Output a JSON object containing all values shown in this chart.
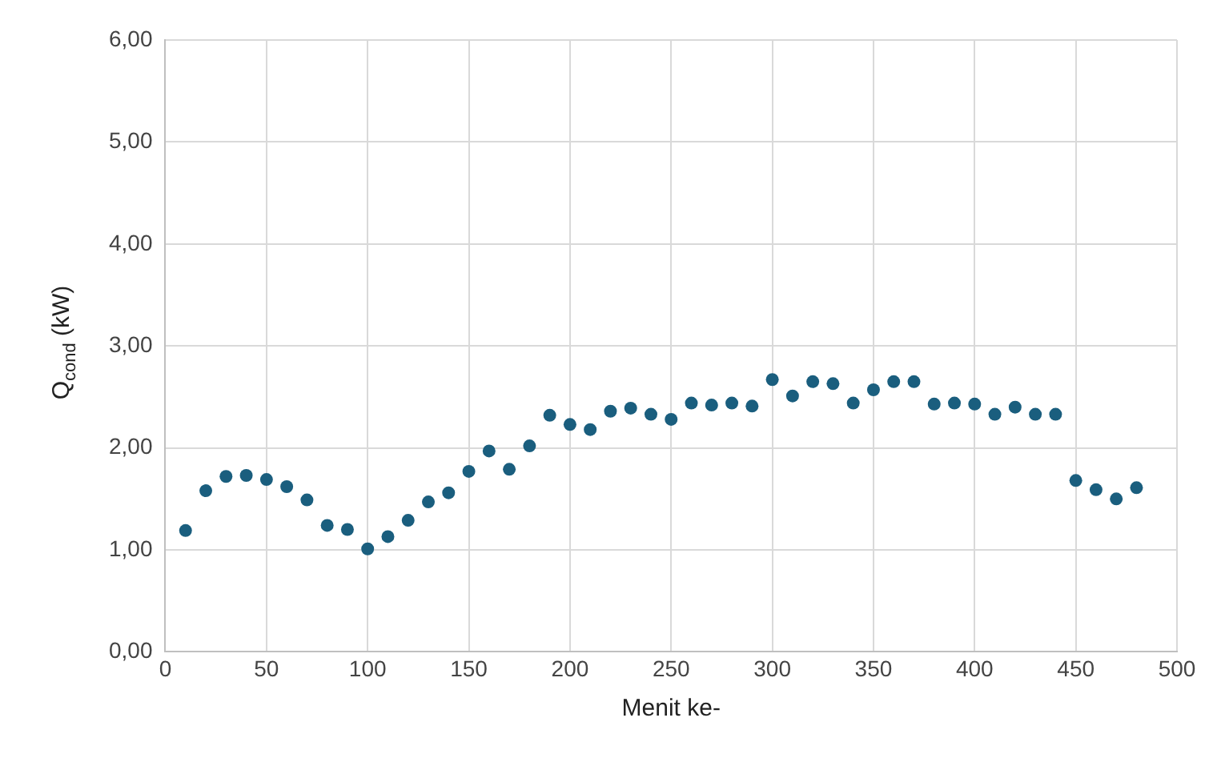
{
  "chart_data": {
    "type": "scatter",
    "xlabel": "Menit ke-",
    "ylabel": "Q$_{cond}$ (kW)",
    "x": [
      10,
      20,
      30,
      40,
      50,
      60,
      70,
      80,
      90,
      100,
      110,
      120,
      130,
      140,
      150,
      160,
      170,
      180,
      190,
      200,
      210,
      220,
      230,
      240,
      250,
      260,
      270,
      280,
      290,
      300,
      310,
      320,
      330,
      340,
      350,
      360,
      370,
      380,
      390,
      400,
      410,
      420,
      430,
      440,
      450,
      460,
      470,
      480
    ],
    "series": [
      {
        "color": "#1a5e7e",
        "values": [
          1.19,
          1.58,
          1.72,
          1.73,
          1.69,
          1.62,
          1.49,
          1.24,
          1.2,
          1.01,
          1.13,
          1.29,
          1.47,
          1.56,
          1.77,
          1.97,
          1.79,
          2.02,
          2.32,
          2.23,
          2.18,
          2.36,
          2.39,
          2.33,
          2.28,
          2.44,
          2.42,
          2.44,
          2.41,
          2.67,
          2.51,
          2.65,
          2.63,
          2.44,
          2.57,
          2.65,
          2.65,
          2.43,
          2.44,
          2.43,
          2.33,
          2.4,
          2.33,
          2.33,
          1.68,
          1.59,
          1.5,
          1.61
        ]
      }
    ],
    "marker": "circle",
    "grid": true,
    "legend": false,
    "xlim": [
      0,
      500
    ],
    "xticks": [
      0,
      50,
      100,
      150,
      200,
      250,
      300,
      350,
      400,
      450,
      500
    ],
    "ylim": [
      0,
      6
    ],
    "yticks": [
      {
        "value": 0,
        "label": "0,00"
      },
      {
        "value": 1,
        "label": "1,00"
      },
      {
        "value": 2,
        "label": "2,00"
      },
      {
        "value": 3,
        "label": "3,00"
      },
      {
        "value": 4,
        "label": "4,00"
      },
      {
        "value": 5,
        "label": "5,00"
      },
      {
        "value": 6,
        "label": "6,00"
      }
    ]
  }
}
